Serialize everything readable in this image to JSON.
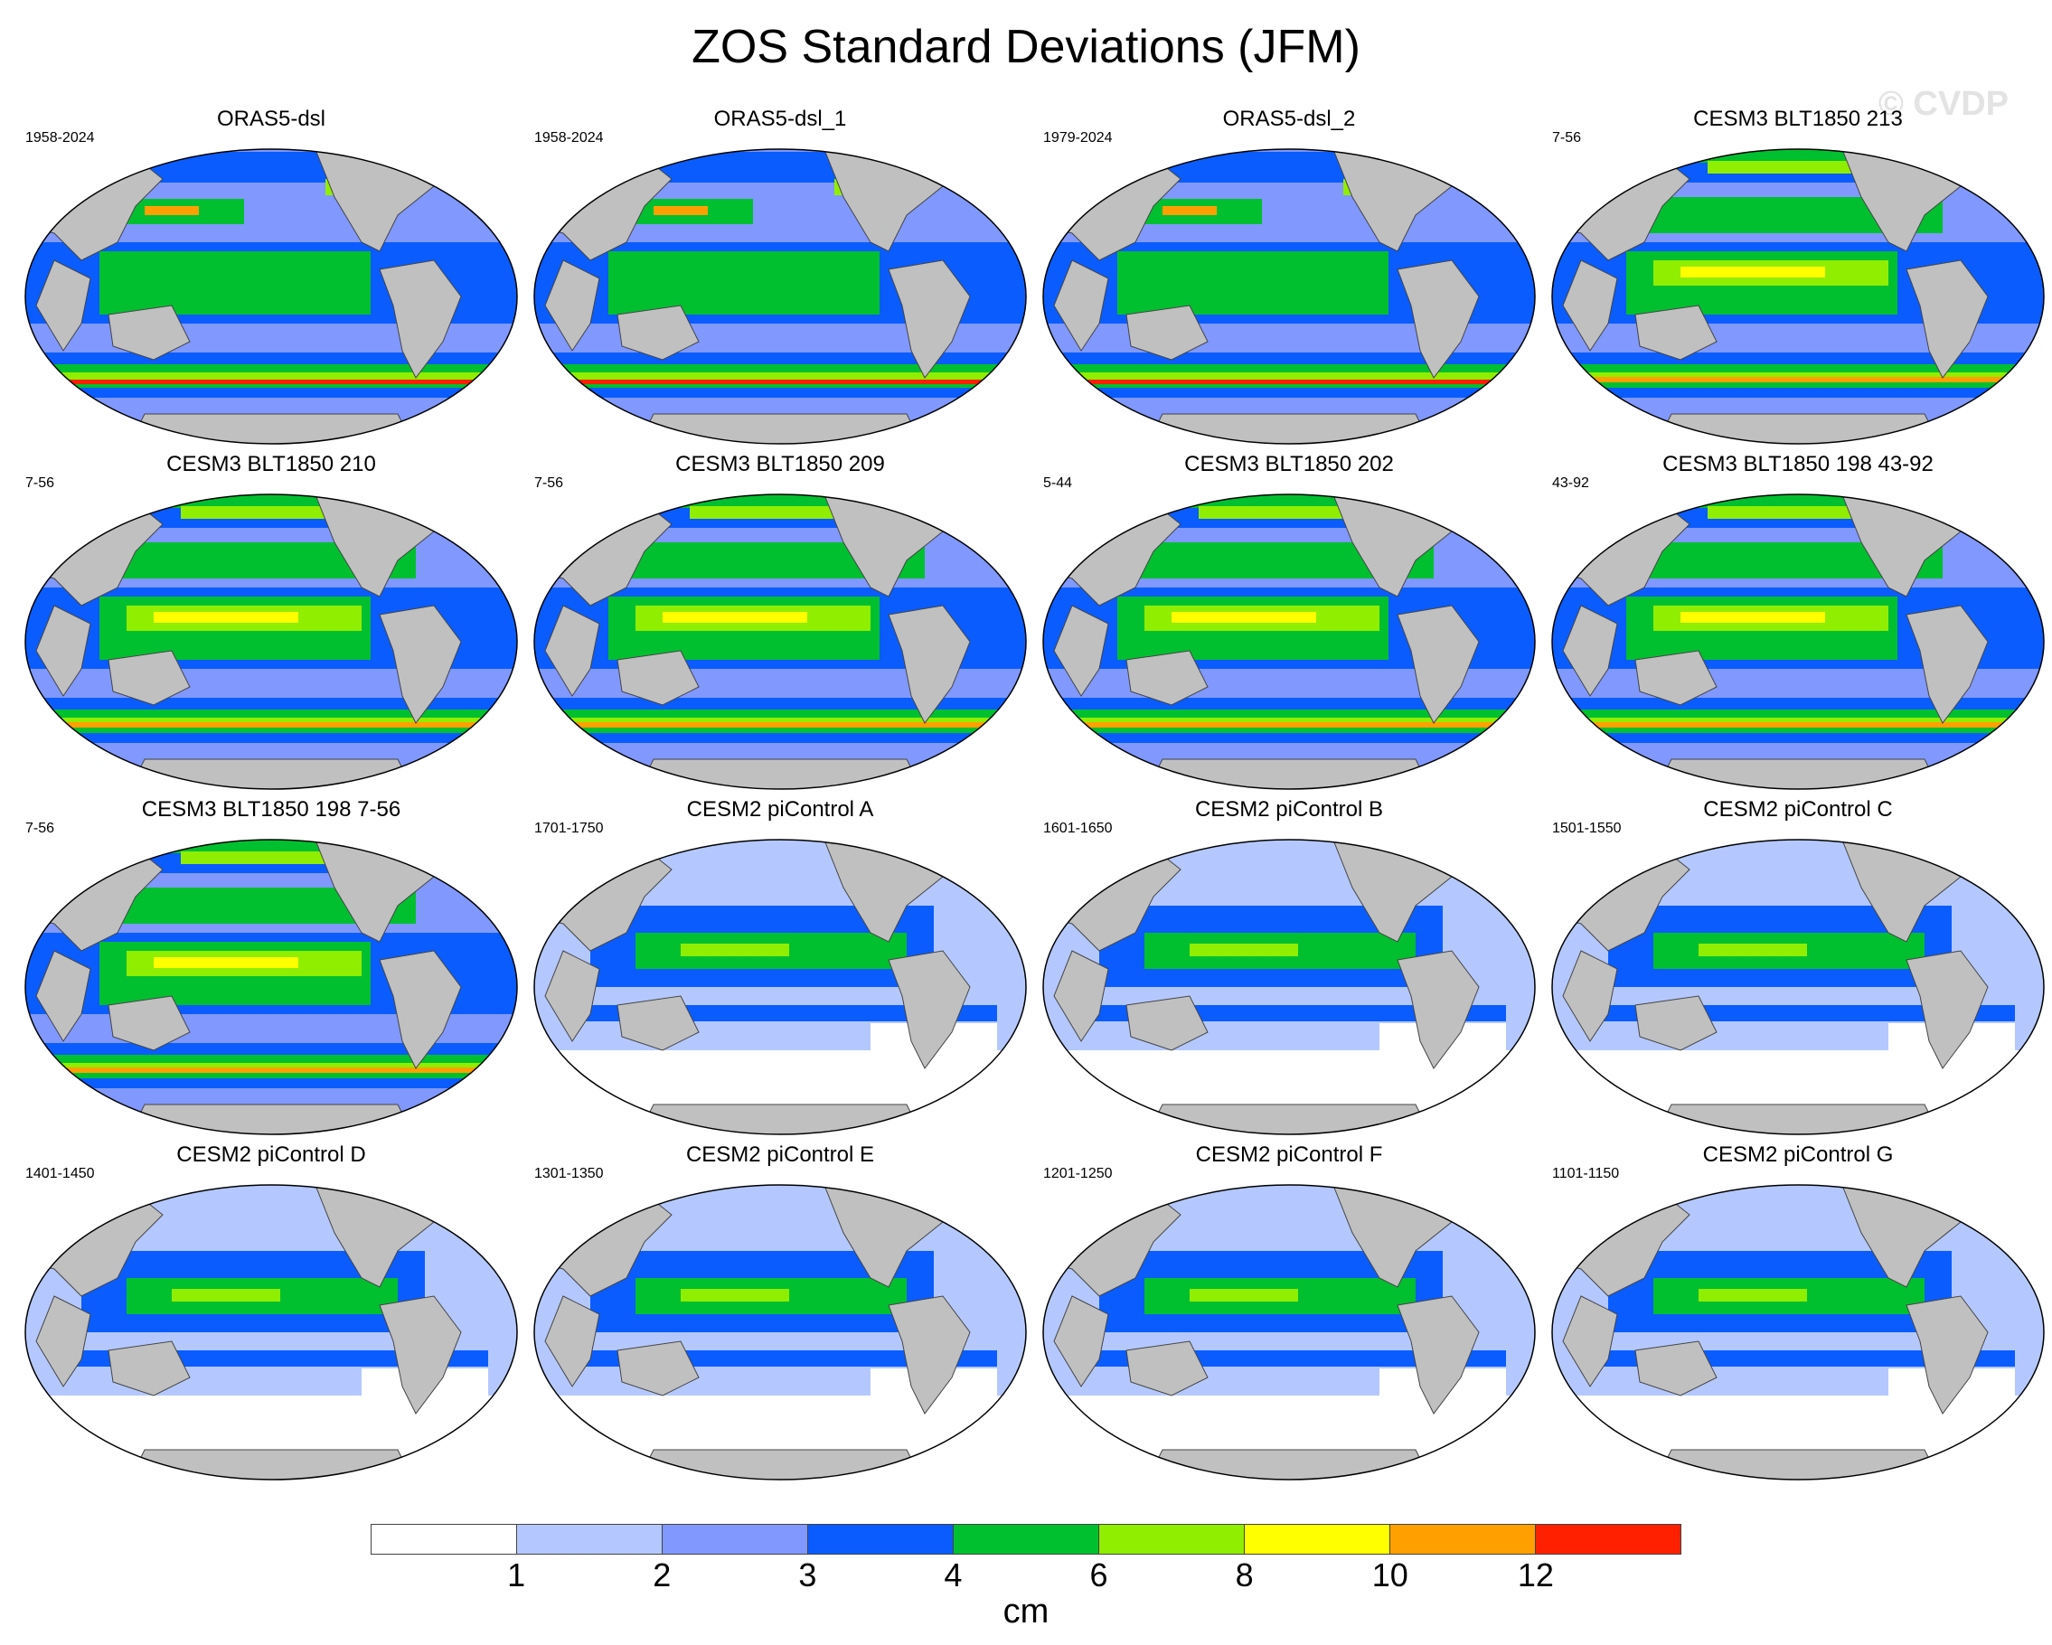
{
  "title": "ZOS Standard Deviations (JFM)",
  "watermark": "© CVDP",
  "colors": {
    "land": "#c0c0c0",
    "levels": [
      "#ffffff",
      "#b4c8ff",
      "#8098ff",
      "#0a5cff",
      "#00c030",
      "#90ee00",
      "#ffff00",
      "#ffa000",
      "#ff2000"
    ]
  },
  "panels": [
    {
      "title": "ORAS5-dsl",
      "period": "1958-2024",
      "intensity": 3
    },
    {
      "title": "ORAS5-dsl_1",
      "period": "1958-2024",
      "intensity": 3
    },
    {
      "title": "ORAS5-dsl_2",
      "period": "1979-2024",
      "intensity": 3
    },
    {
      "title": "CESM3 BLT1850 213",
      "period": "7-56",
      "intensity": 4
    },
    {
      "title": "CESM3 BLT1850 210",
      "period": "7-56",
      "intensity": 4
    },
    {
      "title": "CESM3 BLT1850 209",
      "period": "7-56",
      "intensity": 4
    },
    {
      "title": "CESM3 BLT1850 202",
      "period": "5-44",
      "intensity": 4
    },
    {
      "title": "CESM3 BLT1850 198 43-92",
      "period": "43-92",
      "intensity": 4
    },
    {
      "title": "CESM3 BLT1850 198 7-56",
      "period": "7-56",
      "intensity": 4
    },
    {
      "title": "CESM2 piControl A",
      "period": "1701-1750",
      "intensity": 2
    },
    {
      "title": "CESM2 piControl B",
      "period": "1601-1650",
      "intensity": 2
    },
    {
      "title": "CESM2 piControl C",
      "period": "1501-1550",
      "intensity": 2
    },
    {
      "title": "CESM2 piControl D",
      "period": "1401-1450",
      "intensity": 2
    },
    {
      "title": "CESM2 piControl E",
      "period": "1301-1350",
      "intensity": 2
    },
    {
      "title": "CESM2 piControl F",
      "period": "1201-1250",
      "intensity": 2
    },
    {
      "title": "CESM2 piControl G",
      "period": "1101-1150",
      "intensity": 2
    }
  ],
  "colorbar": {
    "labels": [
      "1",
      "2",
      "3",
      "4",
      "6",
      "8",
      "10",
      "12"
    ],
    "units": "cm"
  }
}
